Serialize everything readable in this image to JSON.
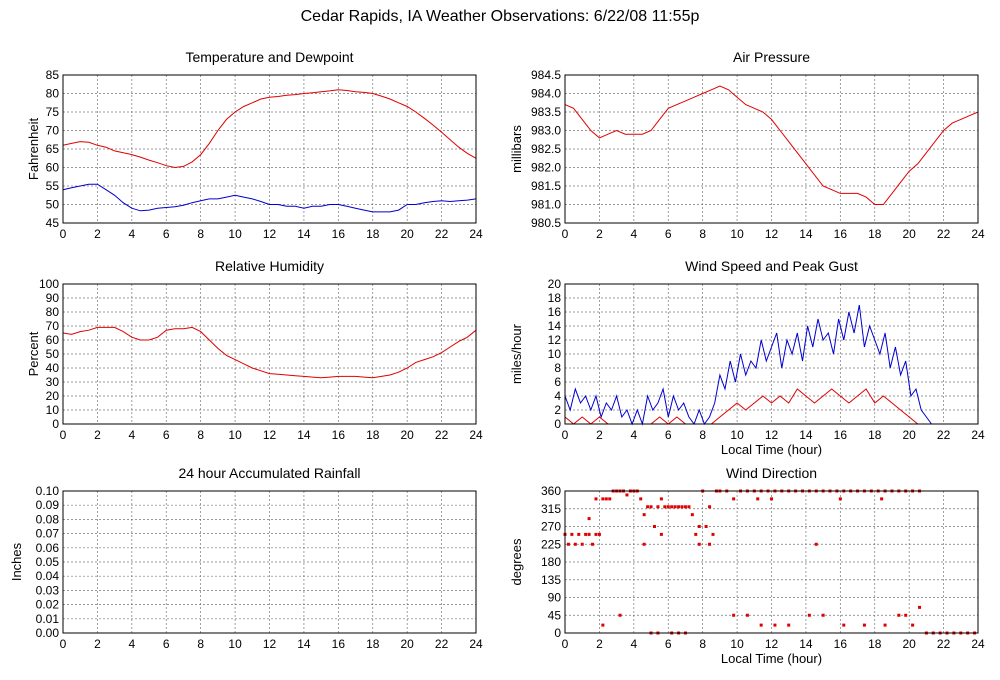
{
  "page_title": "Cedar Rapids, IA Weather Observations: 6/22/08 11:55p",
  "chart_data": [
    {
      "id": "temp",
      "type": "line",
      "title": "Temperature and Dewpoint",
      "xlabel": "",
      "ylabel": "Fahrenheit",
      "xlim": [
        0,
        24
      ],
      "ylim": [
        45,
        85
      ],
      "xticks": [
        0,
        2,
        4,
        6,
        8,
        10,
        12,
        14,
        16,
        18,
        20,
        22,
        24
      ],
      "yticks": [
        45,
        50,
        55,
        60,
        65,
        70,
        75,
        80,
        85
      ],
      "grid": true,
      "series": [
        {
          "color": "#e00000",
          "x": [
            0,
            0.5,
            1,
            1.5,
            2,
            2.5,
            3,
            3.5,
            4,
            4.5,
            5,
            5.5,
            6,
            6.5,
            7,
            7.5,
            8,
            8.5,
            9,
            9.5,
            10,
            10.5,
            11,
            11.5,
            12,
            12.5,
            13,
            13.5,
            14,
            14.5,
            15,
            15.5,
            16,
            16.5,
            17,
            17.5,
            18,
            18.5,
            19,
            19.5,
            20,
            20.5,
            21,
            21.5,
            22,
            22.5,
            23,
            23.5,
            24
          ],
          "y": [
            66,
            66.5,
            67,
            66.8,
            66,
            65.5,
            64.5,
            64,
            63.5,
            62.8,
            62,
            61.3,
            60.5,
            60,
            60.3,
            61.5,
            63.5,
            66.5,
            70,
            73,
            75,
            76.5,
            77.5,
            78.5,
            79,
            79.2,
            79.5,
            79.7,
            80,
            80.2,
            80.5,
            80.7,
            81,
            80.8,
            80.5,
            80.3,
            80,
            79.3,
            78.5,
            77.5,
            76.5,
            75,
            73.3,
            71.5,
            69.5,
            67.5,
            65.5,
            63.8,
            62.5
          ]
        },
        {
          "color": "#0000d0",
          "x": [
            0,
            0.5,
            1,
            1.5,
            2,
            2.5,
            3,
            3.5,
            4,
            4.5,
            5,
            5.5,
            6,
            6.5,
            7,
            7.5,
            8,
            8.5,
            9,
            9.5,
            10,
            10.5,
            11,
            11.5,
            12,
            12.5,
            13,
            13.5,
            14,
            14.5,
            15,
            15.5,
            16,
            16.5,
            17,
            17.5,
            18,
            18.5,
            19,
            19.5,
            20,
            20.5,
            21,
            21.5,
            22,
            22.5,
            23,
            23.5,
            24
          ],
          "y": [
            54,
            54.5,
            55,
            55.5,
            55.5,
            54,
            52.5,
            50.5,
            49,
            48.3,
            48.5,
            49,
            49.2,
            49.4,
            49.8,
            50.5,
            51,
            51.5,
            51.5,
            52,
            52.5,
            52,
            51.5,
            50.8,
            50,
            50,
            49.5,
            49.5,
            49,
            49.5,
            49.5,
            50,
            50,
            49.5,
            49,
            48.5,
            48,
            48,
            48,
            48.5,
            50,
            50,
            50.5,
            50.8,
            51,
            50.8,
            51,
            51.2,
            51.5
          ]
        }
      ]
    },
    {
      "id": "pressure",
      "type": "line",
      "title": "Air Pressure",
      "xlabel": "",
      "ylabel": "millibars",
      "xlim": [
        0,
        24
      ],
      "ylim": [
        980.5,
        984.5
      ],
      "xticks": [
        0,
        2,
        4,
        6,
        8,
        10,
        12,
        14,
        16,
        18,
        20,
        22,
        24
      ],
      "yticks": [
        980.5,
        981.0,
        981.5,
        982.0,
        982.5,
        983.0,
        983.5,
        984.0,
        984.5
      ],
      "ytick_labels": [
        "980.5",
        "981.0",
        "981.5",
        "982.0",
        "982.5",
        "983.0",
        "983.5",
        "984.0",
        "984.5"
      ],
      "grid": true,
      "series": [
        {
          "color": "#e00000",
          "x": [
            0,
            0.5,
            1,
            1.5,
            2,
            2.5,
            3,
            3.5,
            4,
            4.5,
            5,
            5.5,
            6,
            6.5,
            7,
            7.5,
            8,
            8.5,
            9,
            9.5,
            10,
            10.5,
            11,
            11.5,
            12,
            12.5,
            13,
            13.5,
            14,
            14.5,
            15,
            15.5,
            16,
            16.5,
            17,
            17.5,
            18,
            18.5,
            19,
            19.5,
            20,
            20.5,
            21,
            21.5,
            22,
            22.5,
            23,
            23.5,
            24
          ],
          "y": [
            983.7,
            983.6,
            983.3,
            983.0,
            982.8,
            982.9,
            983.0,
            982.9,
            982.9,
            982.9,
            983.0,
            983.3,
            983.6,
            983.7,
            983.8,
            983.9,
            984.0,
            984.1,
            984.2,
            984.1,
            983.9,
            983.7,
            983.6,
            983.5,
            983.3,
            983.0,
            982.7,
            982.4,
            982.1,
            981.8,
            981.5,
            981.4,
            981.3,
            981.3,
            981.3,
            981.2,
            981.0,
            981.0,
            981.3,
            981.6,
            981.9,
            982.1,
            982.4,
            982.7,
            983.0,
            983.2,
            983.3,
            983.4,
            983.5
          ]
        }
      ]
    },
    {
      "id": "humidity",
      "type": "line",
      "title": "Relative Humidity",
      "xlabel": "",
      "ylabel": "Percent",
      "xlim": [
        0,
        24
      ],
      "ylim": [
        0,
        100
      ],
      "xticks": [
        0,
        2,
        4,
        6,
        8,
        10,
        12,
        14,
        16,
        18,
        20,
        22,
        24
      ],
      "yticks": [
        0,
        10,
        20,
        30,
        40,
        50,
        60,
        70,
        80,
        90,
        100
      ],
      "grid": true,
      "series": [
        {
          "color": "#e00000",
          "x": [
            0,
            0.5,
            1,
            1.5,
            2,
            2.5,
            3,
            3.5,
            4,
            4.5,
            5,
            5.5,
            6,
            6.5,
            7,
            7.5,
            8,
            8.5,
            9,
            9.5,
            10,
            10.5,
            11,
            11.5,
            12,
            12.5,
            13,
            13.5,
            14,
            14.5,
            15,
            15.5,
            16,
            16.5,
            17,
            17.5,
            18,
            18.5,
            19,
            19.5,
            20,
            20.5,
            21,
            21.5,
            22,
            22.5,
            23,
            23.5,
            24
          ],
          "y": [
            65,
            64,
            66,
            67,
            69,
            69,
            69,
            66,
            62,
            60,
            60,
            62,
            67,
            68,
            68,
            69,
            66,
            60,
            54,
            49,
            46,
            43,
            40,
            38,
            36,
            35.5,
            35,
            34.5,
            34,
            33.5,
            33,
            33.5,
            34,
            34,
            34,
            33.5,
            33,
            34,
            35,
            37,
            40,
            44,
            46,
            48,
            51,
            55,
            59,
            62,
            67
          ]
        }
      ]
    },
    {
      "id": "wind-speed",
      "type": "line",
      "title": "Wind Speed and Peak Gust",
      "xlabel": "Local Time (hour)",
      "ylabel": "miles/hour",
      "xlim": [
        0,
        24
      ],
      "ylim": [
        0,
        20
      ],
      "xticks": [
        0,
        2,
        4,
        6,
        8,
        10,
        12,
        14,
        16,
        18,
        20,
        22,
        24
      ],
      "yticks": [
        0,
        2,
        4,
        6,
        8,
        10,
        12,
        14,
        16,
        18,
        20
      ],
      "grid": true,
      "series": [
        {
          "color": "#0000d0",
          "x": [
            0,
            0.3,
            0.6,
            0.9,
            1.2,
            1.5,
            1.8,
            2.1,
            2.4,
            2.7,
            3,
            3.3,
            3.6,
            3.9,
            4.2,
            4.5,
            4.8,
            5.1,
            5.4,
            5.7,
            6,
            6.3,
            6.6,
            6.9,
            7.2,
            7.5,
            7.8,
            8.1,
            8.4,
            8.7,
            9,
            9.3,
            9.6,
            9.9,
            10.2,
            10.5,
            10.8,
            11.1,
            11.4,
            11.7,
            12,
            12.3,
            12.6,
            12.9,
            13.2,
            13.5,
            13.8,
            14.1,
            14.4,
            14.7,
            15,
            15.3,
            15.6,
            15.9,
            16.2,
            16.5,
            16.8,
            17.1,
            17.4,
            17.7,
            18,
            18.3,
            18.6,
            18.9,
            19.2,
            19.5,
            19.8,
            20.1,
            20.4,
            20.7,
            21,
            21.3
          ],
          "y": [
            4,
            2,
            5,
            3,
            4,
            2,
            4,
            1,
            3,
            2,
            4,
            1,
            2,
            0,
            2,
            0,
            4,
            2,
            3,
            5,
            1,
            4,
            2,
            3,
            1,
            0,
            2,
            0,
            1,
            3,
            7,
            5,
            9,
            6,
            10,
            7,
            9,
            8,
            12,
            9,
            11,
            13,
            8,
            12,
            10,
            13,
            9,
            14,
            11,
            15,
            12,
            13,
            10,
            15,
            12,
            16,
            13,
            17,
            11,
            14,
            12,
            10,
            13,
            8,
            11,
            7,
            9,
            4,
            5,
            2,
            1,
            0
          ]
        },
        {
          "color": "#e00000",
          "x": [
            0,
            0.5,
            1,
            1.5,
            2,
            2.5,
            3,
            3.5,
            4,
            4.5,
            5,
            5.5,
            6,
            6.5,
            7,
            7.5,
            8,
            8.5,
            9,
            9.5,
            10,
            10.5,
            11,
            11.5,
            12,
            12.5,
            13,
            13.5,
            14,
            14.5,
            15,
            15.5,
            16,
            16.5,
            17,
            17.5,
            18,
            18.5,
            19,
            19.5,
            20,
            20.5,
            21
          ],
          "y": [
            1,
            0,
            1,
            0,
            1,
            0,
            0,
            0,
            0,
            0,
            0,
            1,
            0,
            1,
            0,
            0,
            0,
            0,
            1,
            2,
            3,
            2,
            3,
            4,
            3,
            4,
            3,
            5,
            4,
            3,
            4,
            5,
            4,
            3,
            4,
            5,
            3,
            4,
            3,
            2,
            1,
            0,
            0
          ]
        }
      ]
    },
    {
      "id": "rainfall",
      "type": "line",
      "title": "24 hour Accumulated Rainfall",
      "xlabel": "",
      "ylabel": "Inches",
      "xlim": [
        0,
        24
      ],
      "ylim": [
        0,
        0.1
      ],
      "xticks": [
        0,
        2,
        4,
        6,
        8,
        10,
        12,
        14,
        16,
        18,
        20,
        22,
        24
      ],
      "yticks": [
        0,
        0.01,
        0.02,
        0.03,
        0.04,
        0.05,
        0.06,
        0.07,
        0.08,
        0.09,
        0.1
      ],
      "ytick_labels": [
        "0.00",
        "0.01",
        "0.02",
        "0.03",
        "0.04",
        "0.05",
        "0.06",
        "0.07",
        "0.08",
        "0.09",
        "0.10"
      ],
      "grid": true,
      "series": [
        {
          "color": "#e00000",
          "x": [
            0,
            24
          ],
          "y": [
            0,
            0
          ]
        }
      ]
    },
    {
      "id": "wind-direction",
      "type": "scatter",
      "title": "Wind Direction",
      "xlabel": "Local Time (hour)",
      "ylabel": "degrees",
      "xlim": [
        0,
        24
      ],
      "ylim": [
        0,
        360
      ],
      "xticks": [
        0,
        2,
        4,
        6,
        8,
        10,
        12,
        14,
        16,
        18,
        20,
        22,
        24
      ],
      "yticks": [
        0,
        45,
        90,
        135,
        180,
        225,
        270,
        315,
        360
      ],
      "grid": true,
      "series": [
        {
          "color": "#e00000",
          "x": [
            0,
            0.2,
            0.4,
            0.6,
            0.8,
            1.0,
            1.2,
            1.4,
            1.6,
            1.8,
            2.0,
            2.2,
            2.4,
            2.6,
            2.8,
            3.0,
            3.2,
            3.4,
            3.6,
            3.8,
            4.0,
            4.2,
            4.4,
            4.6,
            4.8,
            5.0,
            5.2,
            5.4,
            5.6,
            5.8,
            6.0,
            6.2,
            6.4,
            6.6,
            6.8,
            7.0,
            7.2,
            7.4,
            7.6,
            7.8,
            8.0,
            8.2,
            8.4,
            8.6,
            8.8,
            9.0,
            9.4,
            9.8,
            10.2,
            10.6,
            11.0,
            11.4,
            11.8,
            12.2,
            12.6,
            13.0,
            13.4,
            13.8,
            14.2,
            14.6,
            15.0,
            15.4,
            15.8,
            16.2,
            16.6,
            17.0,
            17.4,
            17.8,
            18.2,
            18.6,
            19.0,
            19.4,
            19.8,
            20.2,
            20.6,
            21.0,
            21.4,
            21.8,
            22.2,
            22.6,
            23.0,
            23.4,
            23.8,
            2.2,
            3.2,
            4.6,
            5.0,
            5.4,
            6.2,
            6.6,
            7.0,
            9.8,
            10.6,
            11.4,
            12.2,
            13.0,
            14.2,
            15.0,
            16.2,
            17.4,
            18.6,
            19.4,
            19.8,
            20.2,
            20.6,
            1.4,
            1.8,
            5.6,
            7.8,
            8.4,
            11.2,
            12.0,
            14.6,
            16.0,
            18.4
          ],
          "y": [
            250,
            225,
            250,
            225,
            250,
            225,
            250,
            250,
            225,
            250,
            250,
            340,
            340,
            340,
            360,
            360,
            360,
            360,
            350,
            360,
            360,
            360,
            340,
            300,
            320,
            320,
            270,
            320,
            340,
            320,
            320,
            320,
            320,
            320,
            320,
            320,
            320,
            300,
            250,
            270,
            360,
            270,
            225,
            250,
            360,
            360,
            360,
            340,
            360,
            360,
            360,
            360,
            360,
            360,
            360,
            360,
            360,
            360,
            360,
            360,
            360,
            360,
            360,
            360,
            360,
            360,
            360,
            360,
            360,
            360,
            360,
            360,
            360,
            360,
            360,
            0,
            0,
            0,
            0,
            0,
            0,
            0,
            0,
            20,
            45,
            225,
            0,
            0,
            0,
            0,
            0,
            45,
            45,
            20,
            20,
            20,
            45,
            45,
            20,
            20,
            20,
            45,
            45,
            20,
            65,
            290,
            340,
            250,
            225,
            320,
            340,
            340,
            225,
            340,
            340
          ]
        }
      ]
    }
  ]
}
